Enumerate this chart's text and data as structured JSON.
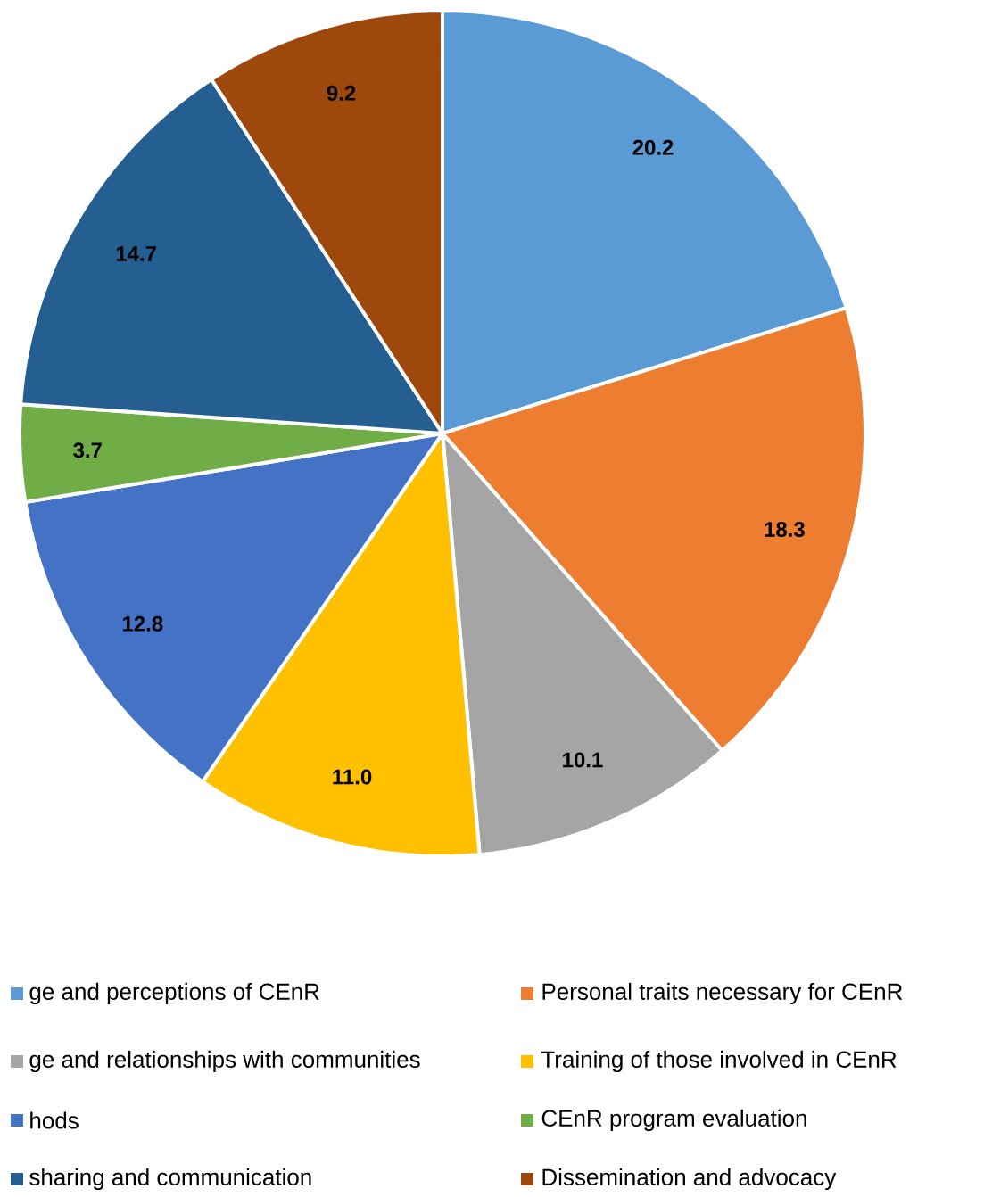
{
  "chart_data": {
    "type": "pie",
    "categories": [
      "ge and perceptions of CEnR",
      "Personal traits necessary for CEnR",
      "ge and relationships with communities",
      "Training of those involved in CEnR",
      "hods",
      "CEnR program evaluation",
      "sharing and communication",
      "Dissemination and advocacy"
    ],
    "values": [
      20.2,
      18.3,
      10.1,
      11.0,
      12.8,
      3.7,
      14.7,
      9.2
    ],
    "colors": [
      "#5b9bd5",
      "#ed7d31",
      "#a5a5a5",
      "#ffc000",
      "#4472c4",
      "#70ad47",
      "#255e91",
      "#9e480e"
    ],
    "value_labels": [
      "20.2",
      "18.3",
      "10.1",
      "11.0",
      "12.8",
      "3.7",
      "14.7",
      "9.2"
    ],
    "legend": "bottom"
  }
}
